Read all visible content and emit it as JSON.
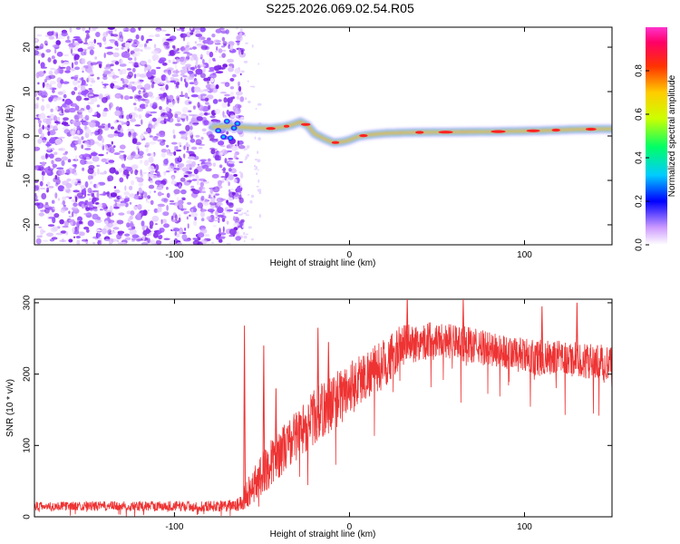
{
  "title": "S225.2026.069.02.54.R05",
  "chart_data": [
    {
      "type": "heatmap",
      "title": "S225.2026.069.02.54.R05",
      "xlabel": "Height of straight line (km)",
      "ylabel": "Frequency (Hz)",
      "xlim": [
        -180,
        150
      ],
      "ylim": [
        -24.5,
        24.5
      ],
      "xticks": [
        -100,
        0,
        100
      ],
      "xtick_labels": [
        "-100",
        "0",
        "100"
      ],
      "yticks": [
        -20,
        -10,
        0,
        10,
        20
      ],
      "ytick_labels": [
        "-20",
        "-10",
        "0",
        "10",
        "20"
      ],
      "noise_region_x": [
        -180,
        -63
      ],
      "ridge": {
        "x": [
          -78,
          -70,
          -63,
          -55,
          -45,
          -38,
          -33,
          -28,
          -24,
          -20,
          -14,
          -9,
          -4,
          0,
          5,
          10,
          20,
          35,
          60,
          85,
          110,
          130,
          150
        ],
        "freq": [
          2.0,
          2.2,
          2.0,
          1.8,
          1.7,
          2.0,
          2.5,
          3.2,
          2.4,
          0.5,
          -0.7,
          -1.5,
          -1.3,
          -0.9,
          -0.1,
          0.2,
          0.6,
          0.8,
          0.9,
          1.0,
          1.2,
          1.5,
          1.6
        ]
      },
      "colorbar": {
        "label": "Normalized spectral amplitude",
        "min": 0.0,
        "max": 1.0,
        "ticks": [
          0.0,
          0.2,
          0.4,
          0.6,
          0.8
        ],
        "tick_labels": [
          "0.0",
          "0.2",
          "0.4",
          "0.6",
          "0.8"
        ]
      }
    },
    {
      "type": "line",
      "xlabel": "Height of straight line (km)",
      "ylabel": "SNR (10 * v/v)",
      "xlim": [
        -180,
        150
      ],
      "ylim": [
        0,
        305
      ],
      "xticks": [
        -100,
        0,
        100
      ],
      "xtick_labels": [
        "-100",
        "0",
        "100"
      ],
      "yticks": [
        0,
        100,
        200,
        300
      ],
      "ytick_labels": [
        "0",
        "100",
        "200",
        "300"
      ],
      "series_color": "#ee3333",
      "envelope": {
        "x": [
          -180,
          -65,
          -62,
          -58,
          -50,
          -40,
          -30,
          -20,
          -10,
          0,
          10,
          20,
          30,
          50,
          70,
          100,
          130,
          150
        ],
        "center": [
          15,
          15,
          20,
          35,
          60,
          90,
          115,
          140,
          160,
          180,
          200,
          215,
          240,
          250,
          240,
          225,
          220,
          215
        ],
        "spread": [
          6,
          8,
          12,
          22,
          30,
          35,
          35,
          40,
          40,
          40,
          35,
          35,
          30,
          25,
          25,
          25,
          25,
          25
        ]
      },
      "spikes": [
        {
          "x": -60,
          "y": 268
        },
        {
          "x": -49,
          "y": 240
        },
        {
          "x": -42,
          "y": 180
        },
        {
          "x": -18,
          "y": 265
        },
        {
          "x": -12,
          "y": 245
        },
        {
          "x": 8,
          "y": 205
        },
        {
          "x": 33,
          "y": 310
        },
        {
          "x": 65,
          "y": 305
        },
        {
          "x": 110,
          "y": 295
        },
        {
          "x": 130,
          "y": 300
        }
      ]
    }
  ]
}
